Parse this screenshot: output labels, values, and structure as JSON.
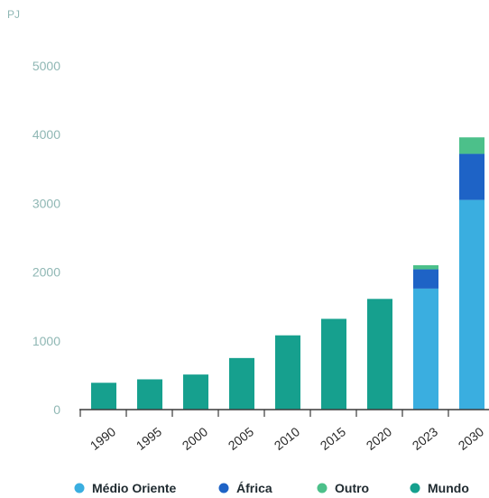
{
  "chart_data": {
    "type": "bar",
    "stacked": true,
    "unit_label": "PJ",
    "title": "",
    "xlabel": "",
    "ylabel": "",
    "ylim": [
      0,
      5000
    ],
    "yticks": [
      0,
      1000,
      2000,
      3000,
      4000,
      5000
    ],
    "grid": false,
    "legend_position": "bottom",
    "categories": [
      "1990",
      "1995",
      "2000",
      "2005",
      "2010",
      "2015",
      "2020",
      "2023",
      "2030"
    ],
    "series": [
      {
        "name": "Mundo",
        "color": "#16a08e",
        "values": [
          390,
          440,
          510,
          750,
          1080,
          1320,
          1610,
          0,
          0
        ]
      },
      {
        "name": "Médio Oriente",
        "color": "#3aaee0",
        "values": [
          0,
          0,
          0,
          0,
          0,
          0,
          0,
          1760,
          3050
        ]
      },
      {
        "name": "África",
        "color": "#1e63c6",
        "values": [
          0,
          0,
          0,
          0,
          0,
          0,
          0,
          280,
          670
        ]
      },
      {
        "name": "Outro",
        "color": "#4cc08a",
        "values": [
          0,
          0,
          0,
          0,
          0,
          0,
          0,
          60,
          240
        ]
      }
    ],
    "legend": [
      {
        "name": "Médio Oriente",
        "color": "#3aaee0"
      },
      {
        "name": "África",
        "color": "#1e63c6"
      },
      {
        "name": "Outro",
        "color": "#4cc08a"
      },
      {
        "name": "Mundo",
        "color": "#16a08e"
      }
    ]
  }
}
